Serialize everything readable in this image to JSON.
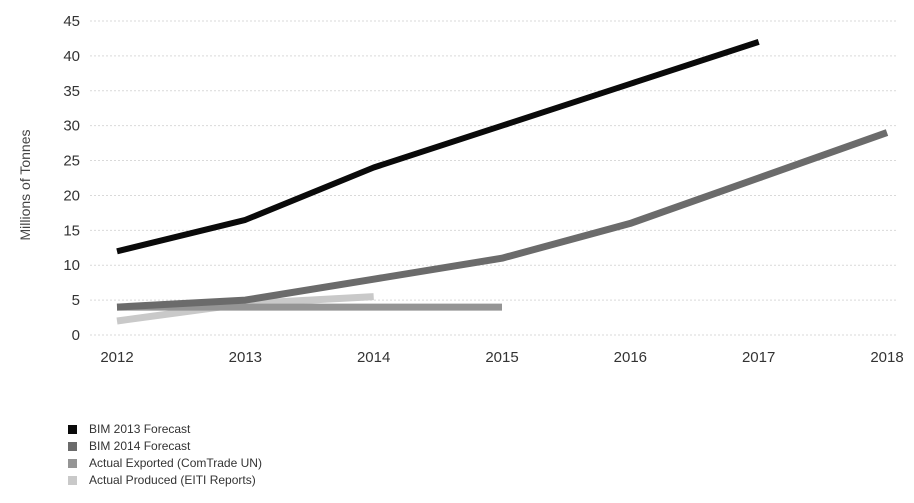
{
  "chart_data": {
    "type": "line",
    "title": "",
    "xlabel": "",
    "ylabel": "Millions of Tonnes",
    "x": [
      2012,
      2013,
      2014,
      2015,
      2016,
      2017,
      2018
    ],
    "ylim": [
      0,
      45
    ],
    "yticks": [
      0,
      5,
      10,
      15,
      20,
      25,
      30,
      35,
      40,
      45
    ],
    "grid": true,
    "legend_position": "bottom-left",
    "series": [
      {
        "name": "BIM 2013 Forecast",
        "color": "#0a0a0a",
        "points": [
          [
            2012,
            12
          ],
          [
            2013,
            16.5
          ],
          [
            2014,
            24
          ],
          [
            2015,
            30
          ],
          [
            2016,
            36
          ],
          [
            2017,
            42
          ]
        ]
      },
      {
        "name": "BIM 2014 Forecast",
        "color": "#6b6b6b",
        "points": [
          [
            2012,
            4
          ],
          [
            2013,
            5
          ],
          [
            2014,
            8
          ],
          [
            2015,
            11
          ],
          [
            2016,
            16
          ],
          [
            2017,
            22.5
          ],
          [
            2018,
            29
          ]
        ]
      },
      {
        "name": "Actual Exported (ComTrade UN)",
        "color": "#959595",
        "points": [
          [
            2012,
            4
          ],
          [
            2013,
            4
          ],
          [
            2014,
            4
          ],
          [
            2015,
            4
          ]
        ]
      },
      {
        "name": "Actual Produced (EITI Reports)",
        "color": "#c9c9c9",
        "points": [
          [
            2012,
            2
          ],
          [
            2013,
            4.5
          ],
          [
            2014,
            5.5
          ]
        ]
      }
    ]
  }
}
